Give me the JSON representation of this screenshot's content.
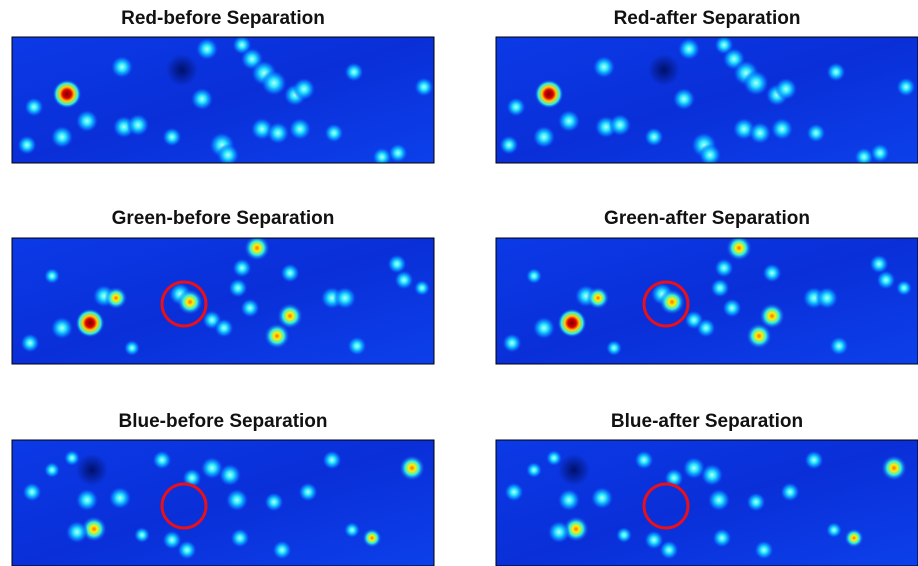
{
  "panels": [
    {
      "title": "Red-before Separation"
    },
    {
      "title": "Red-after Separation"
    },
    {
      "title": "Green-before Separation"
    },
    {
      "title": "Green-after Separation"
    },
    {
      "title": "Blue-before Separation"
    },
    {
      "title": "Blue-after Separation"
    }
  ]
}
